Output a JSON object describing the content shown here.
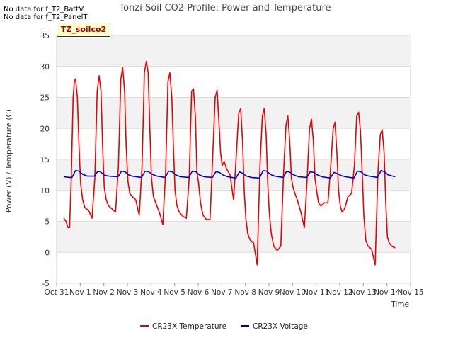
{
  "notes": [
    "No data for f_T2_BattV",
    "No data for f_T2_PanelT"
  ],
  "badge": "TZ_soilco2",
  "chart_data": {
    "type": "line",
    "title": "Tonzi Soil CO2 Profile: Power and Temperature",
    "xlabel": "Time",
    "ylabel": "Power (V) / Temperature (C)",
    "xlim": [
      0,
      15
    ],
    "ylim": [
      -5,
      35
    ],
    "xticks": [
      {
        "v": 0,
        "label": "Oct 31"
      },
      {
        "v": 1,
        "label": "Nov 1"
      },
      {
        "v": 2,
        "label": "Nov 2"
      },
      {
        "v": 3,
        "label": "Nov 3"
      },
      {
        "v": 4,
        "label": "Nov 4"
      },
      {
        "v": 5,
        "label": "Nov 5"
      },
      {
        "v": 6,
        "label": "Nov 6"
      },
      {
        "v": 7,
        "label": "Nov 7"
      },
      {
        "v": 8,
        "label": "Nov 8"
      },
      {
        "v": 9,
        "label": "Nov 9"
      },
      {
        "v": 10,
        "label": "Nov 10"
      },
      {
        "v": 11,
        "label": "Nov 11"
      },
      {
        "v": 12,
        "label": "Nov 12"
      },
      {
        "v": 13,
        "label": "Nov 13"
      },
      {
        "v": 14,
        "label": "Nov 14"
      },
      {
        "v": 15,
        "label": "Nov 15"
      }
    ],
    "yticks": [
      -5,
      0,
      5,
      10,
      15,
      20,
      25,
      30,
      35
    ],
    "grid": true,
    "legend_position": "bottom",
    "series": [
      {
        "name": "CR23X Temperature",
        "color": "#ee0000",
        "x": [
          0.3,
          0.4,
          0.48,
          0.55,
          0.62,
          0.7,
          0.75,
          0.8,
          0.88,
          0.95,
          1.02,
          1.1,
          1.2,
          1.35,
          1.5,
          1.62,
          1.72,
          1.8,
          1.88,
          1.95,
          2.02,
          2.1,
          2.2,
          2.35,
          2.5,
          2.62,
          2.72,
          2.8,
          2.88,
          2.95,
          3.02,
          3.1,
          3.2,
          3.35,
          3.5,
          3.62,
          3.72,
          3.8,
          3.88,
          3.95,
          4.02,
          4.1,
          4.2,
          4.35,
          4.5,
          4.62,
          4.72,
          4.8,
          4.88,
          4.95,
          5.02,
          5.1,
          5.2,
          5.35,
          5.5,
          5.62,
          5.72,
          5.8,
          5.88,
          5.95,
          6.02,
          6.1,
          6.2,
          6.35,
          6.5,
          6.62,
          6.72,
          6.8,
          6.88,
          6.95,
          7.02,
          7.1,
          7.2,
          7.35,
          7.5,
          7.62,
          7.72,
          7.8,
          7.88,
          7.95,
          8.02,
          8.1,
          8.2,
          8.35,
          8.5,
          8.62,
          8.72,
          8.8,
          8.88,
          8.95,
          9.02,
          9.1,
          9.2,
          9.35,
          9.5,
          9.62,
          9.72,
          9.8,
          9.88,
          9.95,
          10.02,
          10.1,
          10.2,
          10.35,
          10.5,
          10.62,
          10.72,
          10.8,
          10.88,
          10.95,
          11.02,
          11.1,
          11.2,
          11.35,
          11.5,
          11.62,
          11.72,
          11.8,
          11.88,
          11.95,
          12.02,
          12.1,
          12.2,
          12.35,
          12.5,
          12.62,
          12.72,
          12.8,
          12.88,
          12.95,
          13.02,
          13.1,
          13.2,
          13.35,
          13.5,
          13.62,
          13.72,
          13.8,
          13.88,
          13.95,
          14.02,
          14.1,
          14.2,
          14.35
        ],
        "y": [
          5.5,
          5.0,
          4.0,
          4.0,
          12.0,
          25.0,
          27.5,
          28.0,
          25.0,
          17.0,
          11.0,
          8.5,
          7.2,
          6.8,
          5.5,
          12.0,
          26.0,
          28.5,
          26.0,
          17.0,
          10.5,
          8.5,
          7.5,
          7.0,
          6.5,
          14.0,
          28.0,
          29.8,
          26.0,
          17.0,
          11.5,
          9.5,
          9.0,
          8.5,
          6.0,
          14.0,
          29.0,
          30.8,
          29.0,
          20.0,
          12.0,
          9.0,
          8.0,
          6.5,
          4.5,
          13.0,
          27.5,
          29.0,
          25.0,
          17.0,
          10.0,
          7.5,
          6.5,
          5.8,
          5.5,
          12.0,
          26.0,
          26.4,
          22.0,
          13.0,
          11.0,
          8.0,
          6.0,
          5.3,
          5.3,
          16.0,
          25.0,
          26.2,
          21.0,
          16.0,
          14.0,
          14.7,
          13.5,
          12.5,
          8.5,
          16.0,
          22.5,
          23.2,
          18.0,
          10.0,
          5.5,
          3.0,
          2.0,
          1.5,
          -2.0,
          14.0,
          22.0,
          23.2,
          19.0,
          11.0,
          6.0,
          3.0,
          1.0,
          0.3,
          1.0,
          13.0,
          20.5,
          22.0,
          18.0,
          12.0,
          10.5,
          9.5,
          8.5,
          6.5,
          4.0,
          12.0,
          20.0,
          21.5,
          18.0,
          12.0,
          10.0,
          8.0,
          7.5,
          8.0,
          8.0,
          14.0,
          20.0,
          21.0,
          16.0,
          10.0,
          7.5,
          6.5,
          7.0,
          9.0,
          9.5,
          14.0,
          22.0,
          22.6,
          19.5,
          13.0,
          6.0,
          2.0,
          1.0,
          0.5,
          -2.0,
          13.0,
          19.0,
          19.8,
          16.0,
          8.0,
          2.5,
          1.5,
          1.0,
          0.7
        ]
      },
      {
        "name": "CR23X Voltage",
        "color": "#0000cc",
        "x": [
          0.3,
          0.55,
          0.65,
          0.8,
          0.95,
          1.1,
          1.3,
          1.6,
          1.75,
          1.85,
          2.0,
          2.2,
          2.6,
          2.75,
          2.9,
          3.05,
          3.2,
          3.6,
          3.75,
          3.9,
          4.05,
          4.25,
          4.6,
          4.75,
          4.9,
          5.05,
          5.25,
          5.6,
          5.75,
          5.9,
          6.05,
          6.25,
          6.6,
          6.75,
          6.9,
          7.05,
          7.25,
          7.6,
          7.75,
          7.9,
          8.05,
          8.25,
          8.6,
          8.75,
          8.9,
          9.05,
          9.25,
          9.6,
          9.75,
          9.9,
          10.05,
          10.25,
          10.6,
          10.75,
          10.9,
          11.05,
          11.25,
          11.6,
          11.75,
          11.9,
          12.05,
          12.25,
          12.6,
          12.75,
          12.9,
          13.05,
          13.25,
          13.6,
          13.75,
          13.9,
          14.05,
          14.35
        ],
        "y": [
          12.2,
          12.1,
          12.1,
          13.2,
          13.1,
          12.6,
          12.3,
          12.3,
          13.1,
          13.0,
          12.5,
          12.3,
          12.2,
          13.1,
          13.0,
          12.5,
          12.3,
          12.1,
          13.1,
          13.0,
          12.6,
          12.3,
          12.1,
          13.1,
          13.0,
          12.5,
          12.2,
          12.1,
          13.1,
          13.0,
          12.5,
          12.2,
          12.1,
          13.0,
          12.9,
          12.5,
          12.2,
          12.0,
          13.0,
          12.7,
          12.3,
          12.1,
          12.0,
          13.2,
          13.1,
          12.6,
          12.3,
          12.1,
          13.1,
          12.9,
          12.5,
          12.2,
          12.1,
          13.0,
          12.9,
          12.5,
          12.2,
          12.0,
          12.9,
          12.7,
          12.4,
          12.2,
          12.0,
          13.1,
          13.0,
          12.5,
          12.3,
          12.1,
          13.2,
          13.0,
          12.5,
          12.2
        ]
      }
    ]
  }
}
